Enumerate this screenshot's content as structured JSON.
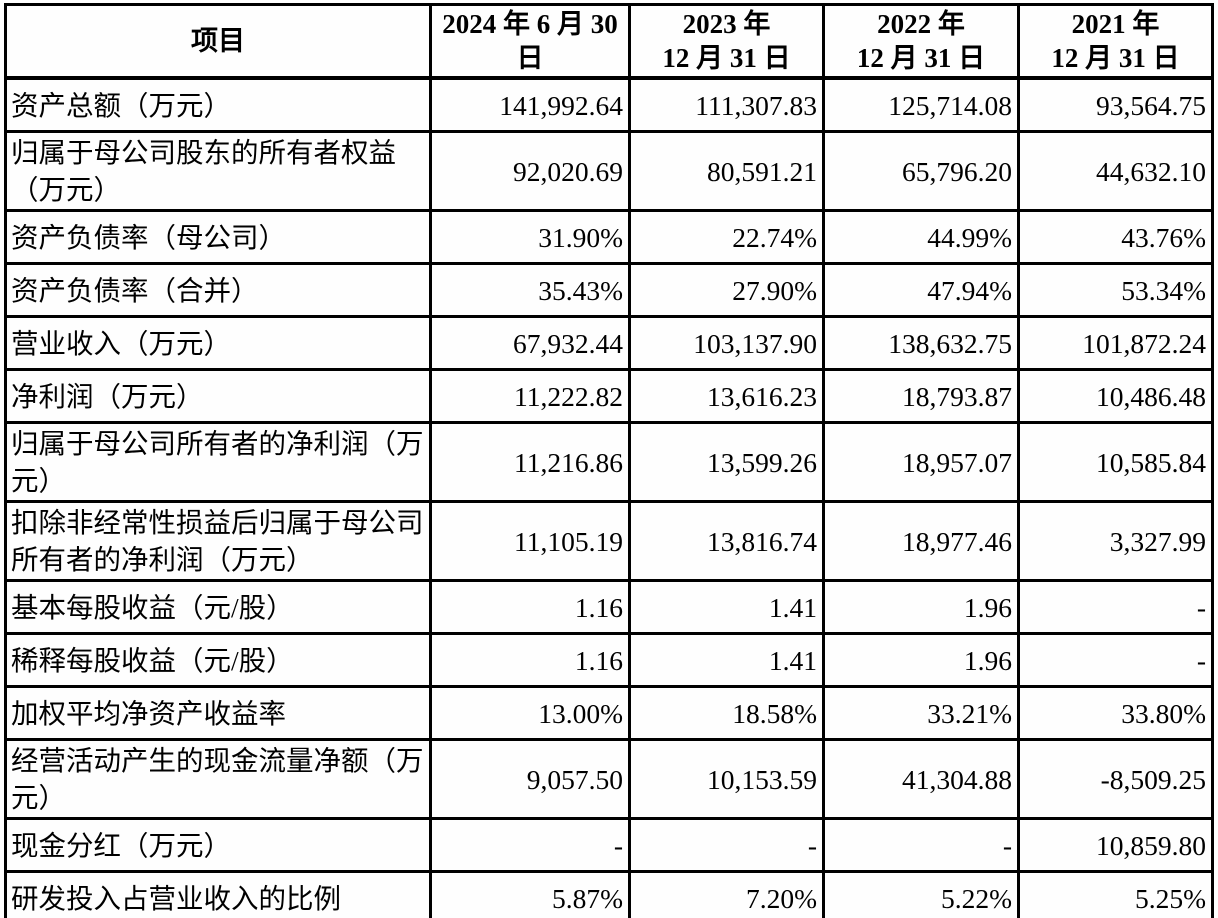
{
  "table": {
    "header": {
      "item": "项目",
      "periods": [
        "2024 年 6 月 30\n日",
        "2023 年\n12 月 31 日",
        "2022 年\n12 月 31 日",
        "2021 年\n12 月 31 日"
      ]
    },
    "rows": [
      {
        "label": "资产总额（万元）",
        "values": [
          "141,992.64",
          "111,307.83",
          "125,714.08",
          "93,564.75"
        ]
      },
      {
        "label": "归属于母公司股东的所有者权益（万元）",
        "values": [
          "92,020.69",
          "80,591.21",
          "65,796.20",
          "44,632.10"
        ]
      },
      {
        "label": "资产负债率（母公司）",
        "values": [
          "31.90%",
          "22.74%",
          "44.99%",
          "43.76%"
        ]
      },
      {
        "label": "资产负债率（合并）",
        "values": [
          "35.43%",
          "27.90%",
          "47.94%",
          "53.34%"
        ]
      },
      {
        "label": "营业收入（万元）",
        "values": [
          "67,932.44",
          "103,137.90",
          "138,632.75",
          "101,872.24"
        ]
      },
      {
        "label": "净利润（万元）",
        "values": [
          "11,222.82",
          "13,616.23",
          "18,793.87",
          "10,486.48"
        ]
      },
      {
        "label": "归属于母公司所有者的净利润（万元）",
        "values": [
          "11,216.86",
          "13,599.26",
          "18,957.07",
          "10,585.84"
        ]
      },
      {
        "label": "扣除非经常性损益后归属于母公司所有者的净利润（万元）",
        "values": [
          "11,105.19",
          "13,816.74",
          "18,977.46",
          "3,327.99"
        ]
      },
      {
        "label": "基本每股收益（元/股）",
        "values": [
          "1.16",
          "1.41",
          "1.96",
          "-"
        ]
      },
      {
        "label": "稀释每股收益（元/股）",
        "values": [
          "1.16",
          "1.41",
          "1.96",
          "-"
        ]
      },
      {
        "label": "加权平均净资产收益率",
        "values": [
          "13.00%",
          "18.58%",
          "33.21%",
          "33.80%"
        ]
      },
      {
        "label": "经营活动产生的现金流量净额（万元）",
        "values": [
          "9,057.50",
          "10,153.59",
          "41,304.88",
          "-8,509.25"
        ]
      },
      {
        "label": "现金分红（万元）",
        "values": [
          "-",
          "-",
          "-",
          "10,859.80"
        ]
      },
      {
        "label": "研发投入占营业收入的比例",
        "values": [
          "5.87%",
          "7.20%",
          "5.22%",
          "5.25%"
        ]
      }
    ]
  },
  "colors": {
    "border": "#000000",
    "text": "#000000",
    "background": "#ffffff"
  }
}
